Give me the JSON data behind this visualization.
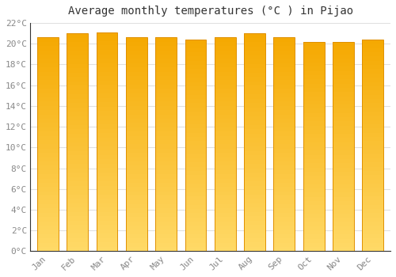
{
  "title": "Average monthly temperatures (°C ) in Pijao",
  "months": [
    "Jan",
    "Feb",
    "Mar",
    "Apr",
    "May",
    "Jun",
    "Jul",
    "Aug",
    "Sep",
    "Oct",
    "Nov",
    "Dec"
  ],
  "temperatures": [
    20.6,
    21.0,
    21.1,
    20.6,
    20.6,
    20.4,
    20.6,
    21.0,
    20.6,
    20.2,
    20.2,
    20.4
  ],
  "bar_color_dark": "#F5A800",
  "bar_color_light": "#FFD966",
  "bar_edge_color": "#E09000",
  "ylim": [
    0,
    22
  ],
  "ytick_step": 2,
  "background_color": "#ffffff",
  "grid_color": "#e0e0e0",
  "title_fontsize": 10,
  "tick_fontsize": 8,
  "tick_color": "#888888",
  "title_color": "#333333",
  "spine_color": "#333333"
}
